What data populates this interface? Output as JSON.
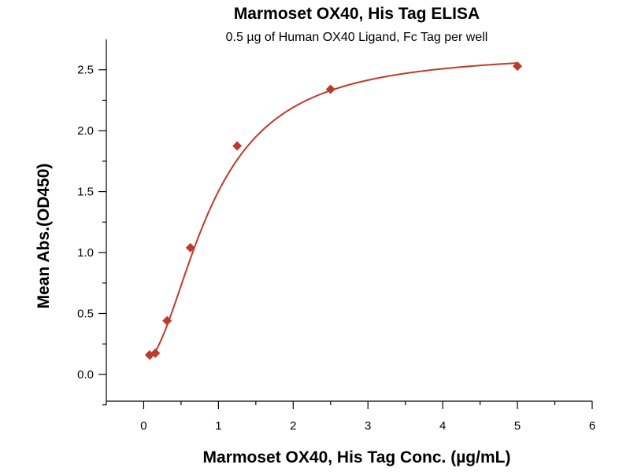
{
  "chart_data": {
    "type": "scatter",
    "title": "Marmoset OX40, His Tag ELISA",
    "subtitle": "0.5 µg of Human OX40 Ligand, Fc Tag per well",
    "xlabel": "Marmoset OX40, His Tag Conc. (µg/mL)",
    "ylabel": "Mean Abs.(OD450)",
    "xlim": [
      -0.5,
      6
    ],
    "ylim": [
      -0.22,
      2.75
    ],
    "x_ticks": [
      0,
      1,
      2,
      3,
      4,
      5,
      6
    ],
    "y_ticks": [
      0.0,
      0.5,
      1.0,
      1.5,
      2.0,
      2.5
    ],
    "x_tick_labels": [
      "0",
      "1",
      "2",
      "3",
      "4",
      "5",
      "6"
    ],
    "y_tick_labels": [
      "0.0",
      "0.5",
      "1.0",
      "1.5",
      "2.0",
      "2.5"
    ],
    "grid": false,
    "colors": {
      "series": "#c0392b"
    },
    "series": [
      {
        "x": [
          0.078,
          0.156,
          0.3125,
          0.625,
          1.25,
          2.5,
          5.0
        ],
        "y": [
          0.16,
          0.175,
          0.44,
          1.04,
          1.875,
          2.34,
          2.53
        ],
        "marker": "diamond",
        "fit": {
          "model": "4PL",
          "bottom": 0.1,
          "top": 2.65,
          "ec50": 0.9,
          "hill": 1.9
        }
      }
    ]
  }
}
